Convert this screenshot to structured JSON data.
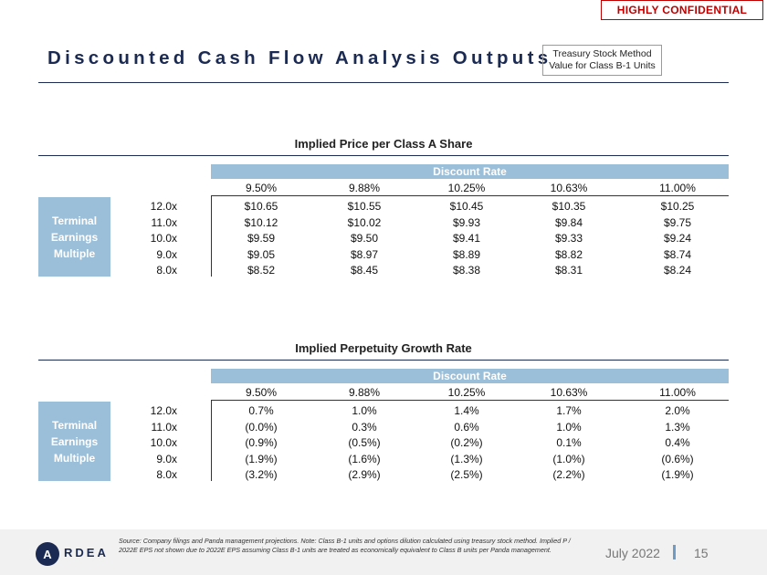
{
  "confidential_label": "HIGHLY CONFIDENTIAL",
  "title": "Discounted Cash Flow Analysis Outputs",
  "method_box": {
    "line1": "Treasury Stock Method",
    "line2": "Value for Class B-1 Units"
  },
  "row_label": {
    "line1": "Terminal",
    "line2": "Earnings",
    "line3": "Multiple"
  },
  "discount_rate_label": "Discount Rate",
  "discount_rates": [
    "9.50%",
    "9.88%",
    "10.25%",
    "10.63%",
    "11.00%"
  ],
  "multiples": [
    "12.0x",
    "11.0x",
    "10.0x",
    "9.0x",
    "8.0x"
  ],
  "tables": [
    {
      "title": "Implied Price per Class A Share",
      "rows": [
        [
          "$10.65",
          "$10.55",
          "$10.45",
          "$10.35",
          "$10.25"
        ],
        [
          "$10.12",
          "$10.02",
          "$9.93",
          "$9.84",
          "$9.75"
        ],
        [
          "$9.59",
          "$9.50",
          "$9.41",
          "$9.33",
          "$9.24"
        ],
        [
          "$9.05",
          "$8.97",
          "$8.89",
          "$8.82",
          "$8.74"
        ],
        [
          "$8.52",
          "$8.45",
          "$8.38",
          "$8.31",
          "$8.24"
        ]
      ]
    },
    {
      "title": "Implied Perpetuity Growth Rate",
      "rows": [
        [
          "0.7%",
          "1.0%",
          "1.4%",
          "1.7%",
          "2.0%"
        ],
        [
          "(0.0%)",
          "0.3%",
          "0.6%",
          "1.0%",
          "1.3%"
        ],
        [
          "(0.9%)",
          "(0.5%)",
          "(0.2%)",
          "0.1%",
          "0.4%"
        ],
        [
          "(1.9%)",
          "(1.6%)",
          "(1.3%)",
          "(1.0%)",
          "(0.6%)"
        ],
        [
          "(3.2%)",
          "(2.9%)",
          "(2.5%)",
          "(2.2%)",
          "(1.9%)"
        ]
      ]
    }
  ],
  "footer": {
    "source": "Source: Company filings and Panda management projections. Note: Class B-1 units and options dilution calculated using treasury stock method. Implied P / 2022E EPS not shown due to 2022E EPS assuming Class B-1 units are treated as economically equivalent to Class B units per Panda management.",
    "logo_letter": "A",
    "logo_text": "RDEA",
    "date": "July 2022",
    "page_number": "15"
  },
  "colors": {
    "navy": "#1b2a52",
    "header_blue": "#9bbfd9",
    "confidential_red": "#c00000"
  }
}
